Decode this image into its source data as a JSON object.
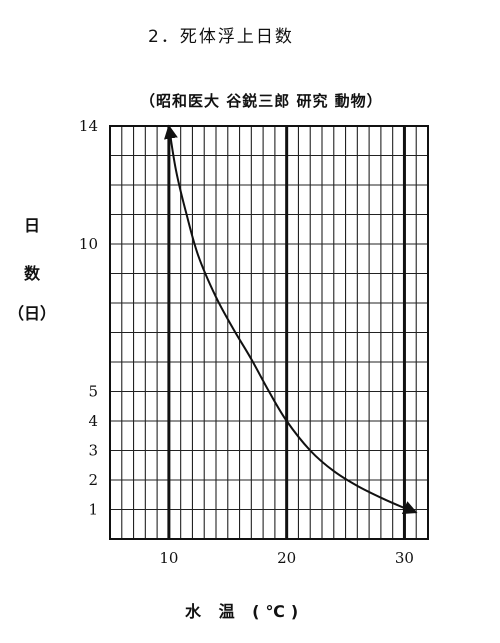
{
  "chart_data": {
    "type": "line",
    "title": "2．死体浮上日数",
    "subtitle": "（昭和医大 谷鋭三郎 研究 動物）",
    "ylabel_lines": [
      "日",
      "数",
      "（日）"
    ],
    "xlabel": "水 温 (℃)",
    "xlim": [
      5,
      32
    ],
    "ylim": [
      0,
      14
    ],
    "x_ticks": [
      "10",
      "20",
      "30"
    ],
    "x_tick_values": [
      10,
      20,
      30
    ],
    "y_ticks": [
      "1",
      "2",
      "3",
      "4",
      "5",
      "10",
      "14"
    ],
    "y_tick_values": [
      1,
      2,
      3,
      4,
      5,
      10,
      14
    ],
    "grid": true,
    "series": [
      {
        "x": [
          10,
          10.6,
          11.5,
          12.5,
          14,
          15.5,
          17,
          18.5,
          20,
          22,
          24,
          26,
          28,
          30,
          31
        ],
        "y": [
          14,
          12.5,
          11,
          9.6,
          8.2,
          7.1,
          6.1,
          5.0,
          4.0,
          3.0,
          2.3,
          1.8,
          1.4,
          1.05,
          0.9
        ]
      }
    ]
  }
}
